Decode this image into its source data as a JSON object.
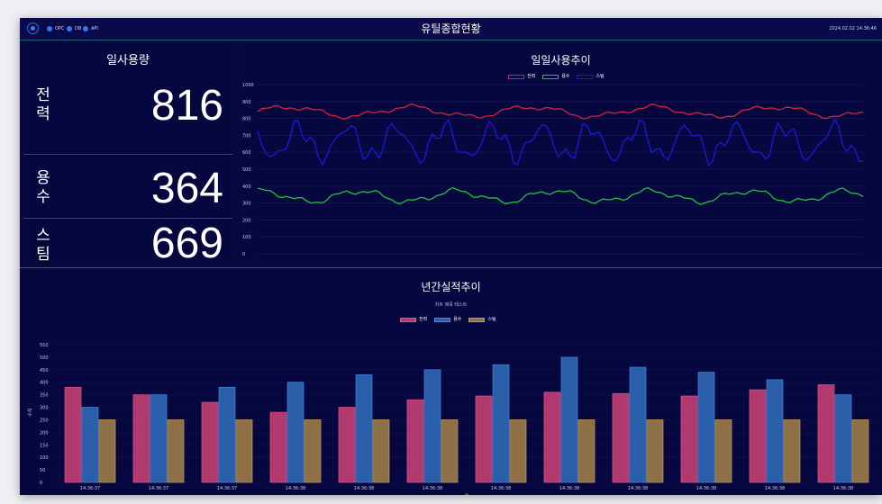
{
  "header": {
    "title": "유틸종합현황",
    "status": [
      {
        "label": "OPC",
        "color": "#2f78f0"
      },
      {
        "label": "DB",
        "color": "#2f78f0"
      },
      {
        "label": "API",
        "color": "#2f78f0"
      }
    ],
    "datetime": "2024.02.02 14:36:46"
  },
  "daily": {
    "title": "일사용량",
    "metrics": [
      {
        "label": "전력",
        "value": "816"
      },
      {
        "label": "용수",
        "value": "364"
      },
      {
        "label": "스팀",
        "value": "669"
      }
    ]
  },
  "chart_data": [
    {
      "type": "line",
      "title": "일일사용추이",
      "ylim": [
        0,
        1000
      ],
      "yticks": [
        0,
        100,
        200,
        300,
        400,
        500,
        600,
        700,
        800,
        900,
        1000
      ],
      "grid": true,
      "legend_position": "top-center",
      "series": [
        {
          "name": "전력",
          "color": "#d8213a",
          "base": 840,
          "amplitude": 40,
          "period": 10
        },
        {
          "name": "용수",
          "color": "#1fc43a",
          "base": 340,
          "amplitude": 45,
          "period": 8
        },
        {
          "name": "스팀",
          "color": "#1a1ad8",
          "base": 660,
          "amplitude": 130,
          "period": 4
        }
      ],
      "points": 150
    },
    {
      "type": "bar",
      "title": "년간실적추이",
      "subtitle": "차트 제목 테스트",
      "xlabel": "월",
      "ylabel": "수치",
      "ylim": [
        0,
        550
      ],
      "yticks": [
        0,
        50,
        100,
        150,
        200,
        250,
        300,
        350,
        400,
        450,
        500,
        550
      ],
      "legend_position": "top-center",
      "categories": [
        "14:36:37",
        "14:36:37",
        "14:36:37",
        "14:36:38",
        "14:36:38",
        "14:36:38",
        "14:36:38",
        "14:36:38",
        "14:36:38",
        "14:36:38",
        "14:36:38",
        "14:36:38"
      ],
      "series": [
        {
          "name": "전력",
          "color": "#b03a6e",
          "border": "#e0528e",
          "values": [
            380,
            350,
            320,
            280,
            300,
            330,
            345,
            360,
            355,
            345,
            370,
            390
          ]
        },
        {
          "name": "용수",
          "color": "#2a5ea8",
          "border": "#3f86e8",
          "values": [
            300,
            350,
            380,
            400,
            430,
            450,
            470,
            500,
            460,
            440,
            410,
            350
          ]
        },
        {
          "name": "스팀",
          "color": "#8e7046",
          "border": "#c49a5a",
          "values": [
            250,
            250,
            250,
            250,
            250,
            250,
            250,
            250,
            250,
            250,
            250,
            250
          ]
        }
      ]
    }
  ]
}
